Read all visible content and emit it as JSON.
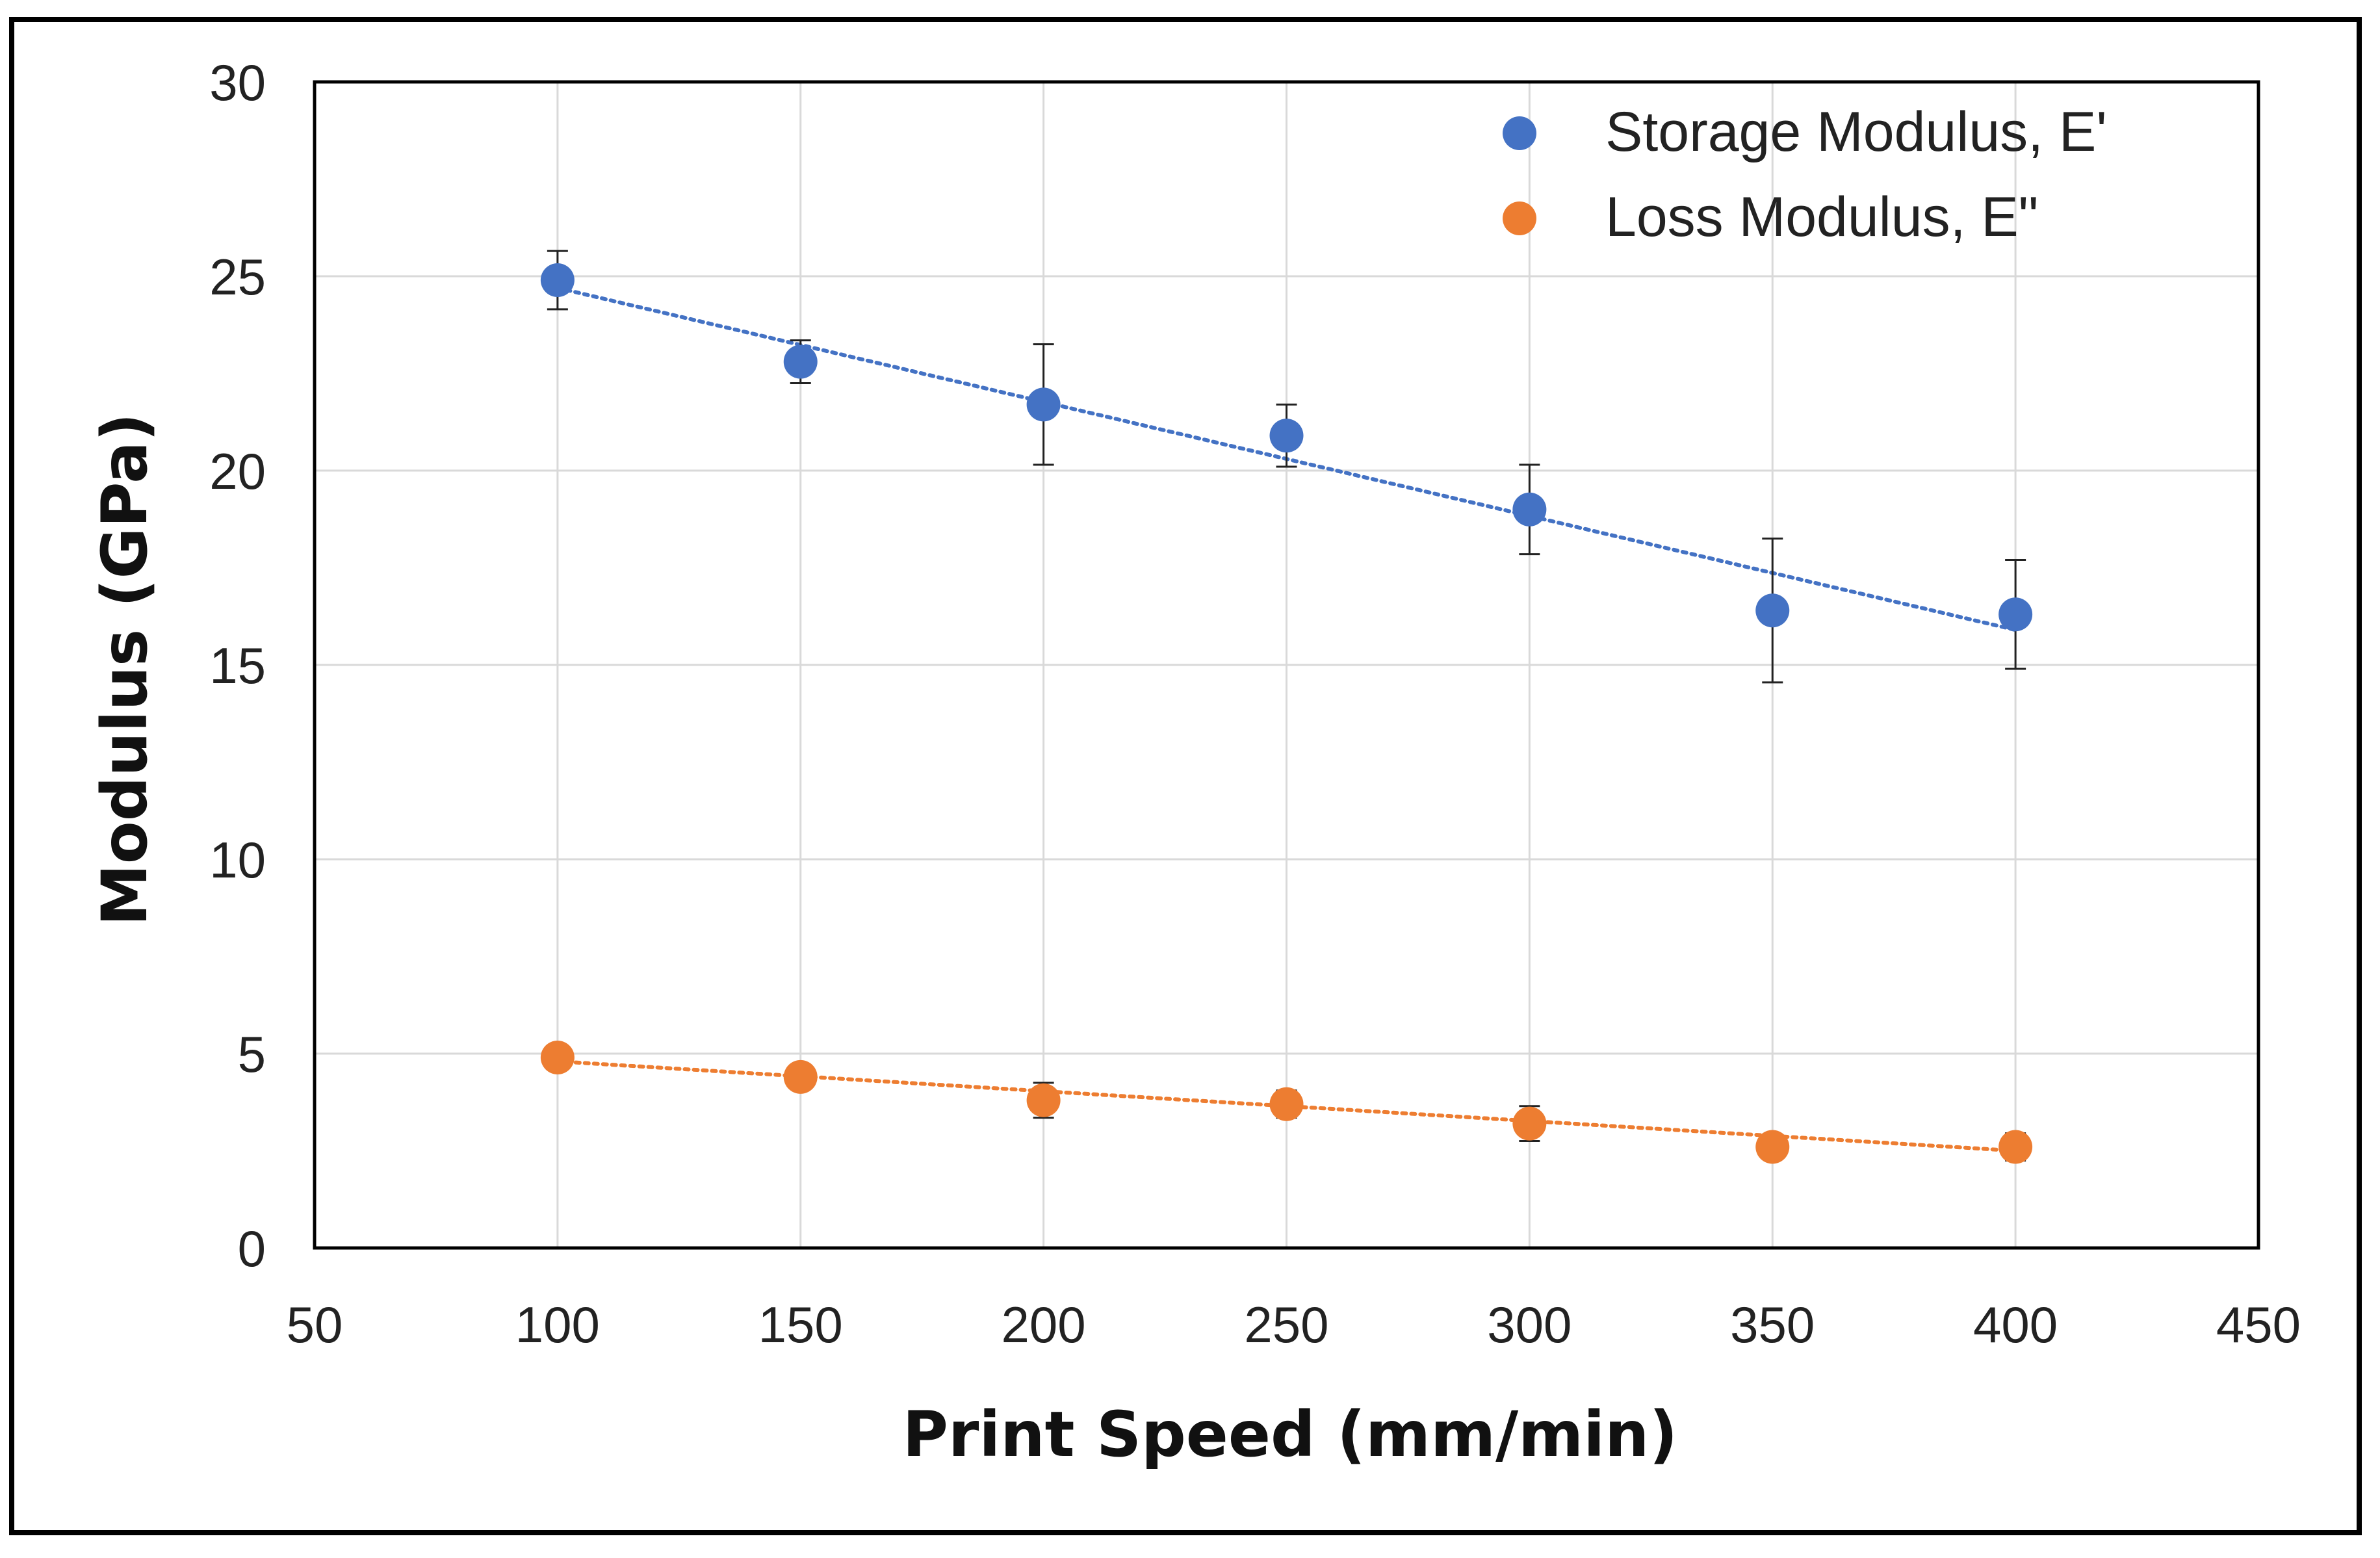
{
  "chart_data": {
    "type": "scatter",
    "title": "",
    "xlabel": "Print Speed (mm/min)",
    "ylabel": "Modulus (GPa)",
    "xlim": [
      50,
      450
    ],
    "ylim": [
      0,
      30
    ],
    "xticks": [
      "50",
      "100",
      "150",
      "200",
      "250",
      "300",
      "350",
      "400",
      "450"
    ],
    "yticks": [
      "0",
      "5",
      "10",
      "15",
      "20",
      "25",
      "30"
    ],
    "grid": true,
    "legend_position": "top-right",
    "series": [
      {
        "name": "Storage Modulus, E'",
        "color": "#4472C4",
        "x": [
          100,
          150,
          200,
          250,
          300,
          350,
          400
        ],
        "y": [
          24.9,
          22.8,
          21.7,
          20.9,
          19.0,
          16.4,
          16.3
        ],
        "error": [
          0.75,
          0.55,
          1.55,
          0.8,
          1.15,
          1.85,
          1.4
        ],
        "trendline": {
          "style": "dotted",
          "x": [
            100,
            400
          ],
          "y": [
            24.7,
            15.9
          ]
        }
      },
      {
        "name": "Loss Modulus, E\"",
        "color": "#ED7D31",
        "x": [
          100,
          150,
          200,
          250,
          300,
          350,
          400
        ],
        "y": [
          4.9,
          4.4,
          3.8,
          3.7,
          3.2,
          2.6,
          2.6
        ],
        "error": [
          0.2,
          0.15,
          0.45,
          0.35,
          0.45,
          0.3,
          0.35
        ],
        "trendline": {
          "style": "dotted",
          "x": [
            100,
            400
          ],
          "y": [
            4.8,
            2.5
          ]
        }
      }
    ]
  }
}
